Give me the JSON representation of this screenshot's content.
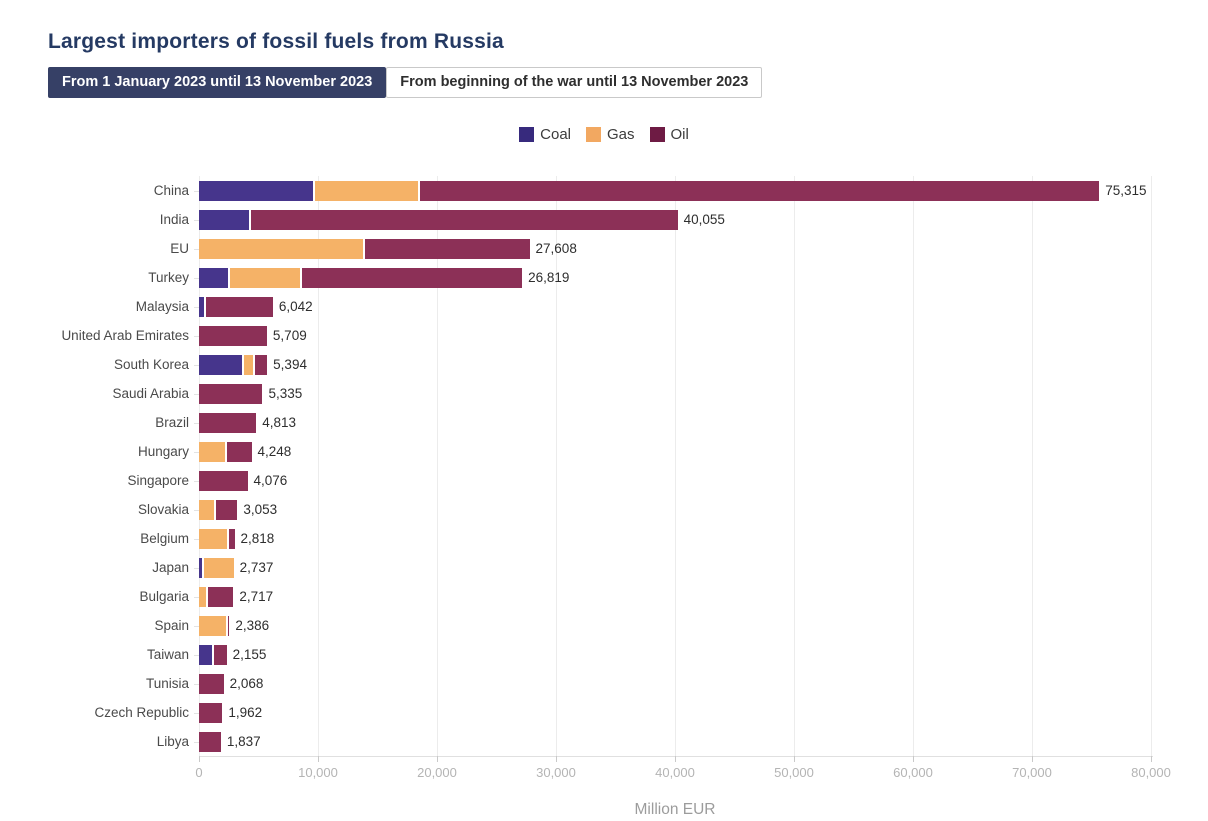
{
  "title": "Largest importers of fossil fuels from Russia",
  "tabs": [
    {
      "label": "From 1 January 2023 until 13 November 2023",
      "active": true
    },
    {
      "label": "From beginning of the war until 13 November 2023",
      "active": false
    }
  ],
  "legend": [
    {
      "label": "Coal",
      "color": "#372a7d"
    },
    {
      "label": "Gas",
      "color": "#f2a861"
    },
    {
      "label": "Oil",
      "color": "#6e1b44"
    }
  ],
  "colors": {
    "accent_navy": "#364066",
    "bar_coal": "#46358c",
    "bar_gas": "#f5b267",
    "bar_oil": "#8c3057"
  },
  "chart_data": {
    "type": "bar",
    "orientation": "horizontal",
    "stacked": true,
    "grid": "vertical",
    "legend_position": "top-center",
    "series_names": [
      "Coal",
      "Gas",
      "Oil"
    ],
    "xlabel": "Million EUR",
    "xlim": [
      0,
      80000
    ],
    "xticks": [
      0,
      10000,
      20000,
      30000,
      40000,
      50000,
      60000,
      70000,
      80000
    ],
    "xtick_labels": [
      "0",
      "10,000",
      "20,000",
      "30,000",
      "40,000",
      "50,000",
      "60,000",
      "70,000",
      "80,000"
    ],
    "rows": [
      {
        "country": "China",
        "coal": 9600,
        "gas": 8650,
        "oil": 57065,
        "total": 75315,
        "total_label": "75,315"
      },
      {
        "country": "India",
        "coal": 4200,
        "gas": 0,
        "oil": 35855,
        "total": 40055,
        "total_label": "40,055"
      },
      {
        "country": "EU",
        "coal": 0,
        "gas": 13750,
        "oil": 13858,
        "total": 27608,
        "total_label": "27,608"
      },
      {
        "country": "Turkey",
        "coal": 2400,
        "gas": 5900,
        "oil": 18519,
        "total": 26819,
        "total_label": "26,819"
      },
      {
        "country": "Malaysia",
        "coal": 400,
        "gas": 0,
        "oil": 5642,
        "total": 6042,
        "total_label": "6,042"
      },
      {
        "country": "United Arab Emirates",
        "coal": 0,
        "gas": 0,
        "oil": 5709,
        "total": 5709,
        "total_label": "5,709"
      },
      {
        "country": "South Korea",
        "coal": 3650,
        "gas": 700,
        "oil": 1044,
        "total": 5394,
        "total_label": "5,394"
      },
      {
        "country": "Saudi Arabia",
        "coal": 0,
        "gas": 0,
        "oil": 5335,
        "total": 5335,
        "total_label": "5,335"
      },
      {
        "country": "Brazil",
        "coal": 0,
        "gas": 0,
        "oil": 4813,
        "total": 4813,
        "total_label": "4,813"
      },
      {
        "country": "Hungary",
        "coal": 0,
        "gas": 2150,
        "oil": 2098,
        "total": 4248,
        "total_label": "4,248"
      },
      {
        "country": "Singapore",
        "coal": 0,
        "gas": 0,
        "oil": 4076,
        "total": 4076,
        "total_label": "4,076"
      },
      {
        "country": "Slovakia",
        "coal": 0,
        "gas": 1250,
        "oil": 1803,
        "total": 3053,
        "total_label": "3,053"
      },
      {
        "country": "Belgium",
        "coal": 0,
        "gas": 2320,
        "oil": 498,
        "total": 2818,
        "total_label": "2,818"
      },
      {
        "country": "Japan",
        "coal": 250,
        "gas": 2487,
        "oil": 0,
        "total": 2737,
        "total_label": "2,737"
      },
      {
        "country": "Bulgaria",
        "coal": 0,
        "gas": 550,
        "oil": 2167,
        "total": 2717,
        "total_label": "2,717"
      },
      {
        "country": "Spain",
        "coal": 0,
        "gas": 2290,
        "oil": 96,
        "total": 2386,
        "total_label": "2,386"
      },
      {
        "country": "Taiwan",
        "coal": 1100,
        "gas": 0,
        "oil": 1055,
        "total": 2155,
        "total_label": "2,155"
      },
      {
        "country": "Tunisia",
        "coal": 0,
        "gas": 0,
        "oil": 2068,
        "total": 2068,
        "total_label": "2,068"
      },
      {
        "country": "Czech Republic",
        "coal": 0,
        "gas": 0,
        "oil": 1962,
        "total": 1962,
        "total_label": "1,962"
      },
      {
        "country": "Libya",
        "coal": 0,
        "gas": 0,
        "oil": 1837,
        "total": 1837,
        "total_label": "1,837"
      }
    ]
  }
}
